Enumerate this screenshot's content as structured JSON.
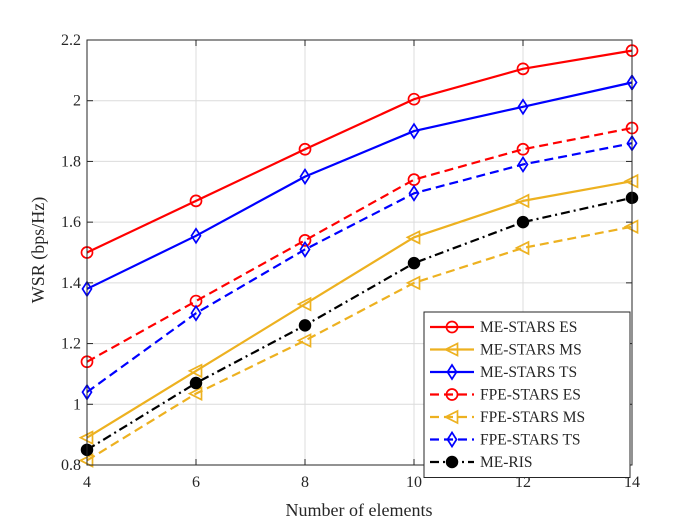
{
  "chart_data": {
    "type": "line",
    "title": "",
    "xlabel": "Number of elements",
    "ylabel": "WSR (bps/Hz)",
    "xlim": [
      4,
      14
    ],
    "ylim": [
      0.8,
      2.2
    ],
    "xticks": [
      4,
      6,
      8,
      10,
      12,
      14
    ],
    "xtick_labels": [
      "4",
      "6",
      "8",
      "10",
      "12",
      "14"
    ],
    "yticks": [
      0.8,
      1.0,
      1.2,
      1.4,
      1.6,
      1.8,
      2.0,
      2.2
    ],
    "ytick_labels": [
      "0.8",
      "1",
      "1.2",
      "1.4",
      "1.6",
      "1.8",
      "2",
      "2.2"
    ],
    "grid": true,
    "legend_position": "bottom-right",
    "x": [
      4,
      6,
      8,
      10,
      12,
      14
    ],
    "series": [
      {
        "name": "ME-STARS ES",
        "values": [
          1.5,
          1.67,
          1.84,
          2.005,
          2.105,
          2.165
        ],
        "color": "#ff0000",
        "dash": "solid",
        "marker": "circle"
      },
      {
        "name": "ME-STARS MS",
        "values": [
          0.89,
          1.11,
          1.33,
          1.55,
          1.67,
          1.735
        ],
        "color": "#edb120",
        "dash": "solid",
        "marker": "triangle-left"
      },
      {
        "name": "ME-STARS TS",
        "values": [
          1.38,
          1.555,
          1.75,
          1.9,
          1.98,
          2.06
        ],
        "color": "#0000ff",
        "dash": "solid",
        "marker": "diamond"
      },
      {
        "name": "FPE-STARS ES",
        "values": [
          1.14,
          1.34,
          1.54,
          1.74,
          1.84,
          1.91
        ],
        "color": "#ff0000",
        "dash": "dashed",
        "marker": "circle"
      },
      {
        "name": "FPE-STARS MS",
        "values": [
          0.815,
          1.035,
          1.21,
          1.4,
          1.515,
          1.585
        ],
        "color": "#edb120",
        "dash": "dashed",
        "marker": "triangle-left"
      },
      {
        "name": "FPE-STARS TS",
        "values": [
          1.04,
          1.3,
          1.51,
          1.695,
          1.79,
          1.86
        ],
        "color": "#0000ff",
        "dash": "dashed",
        "marker": "diamond"
      },
      {
        "name": "ME-RIS",
        "values": [
          0.85,
          1.07,
          1.26,
          1.465,
          1.6,
          1.68
        ],
        "color": "#000000",
        "dash": "dashdot",
        "marker": "filled-circle"
      }
    ]
  }
}
